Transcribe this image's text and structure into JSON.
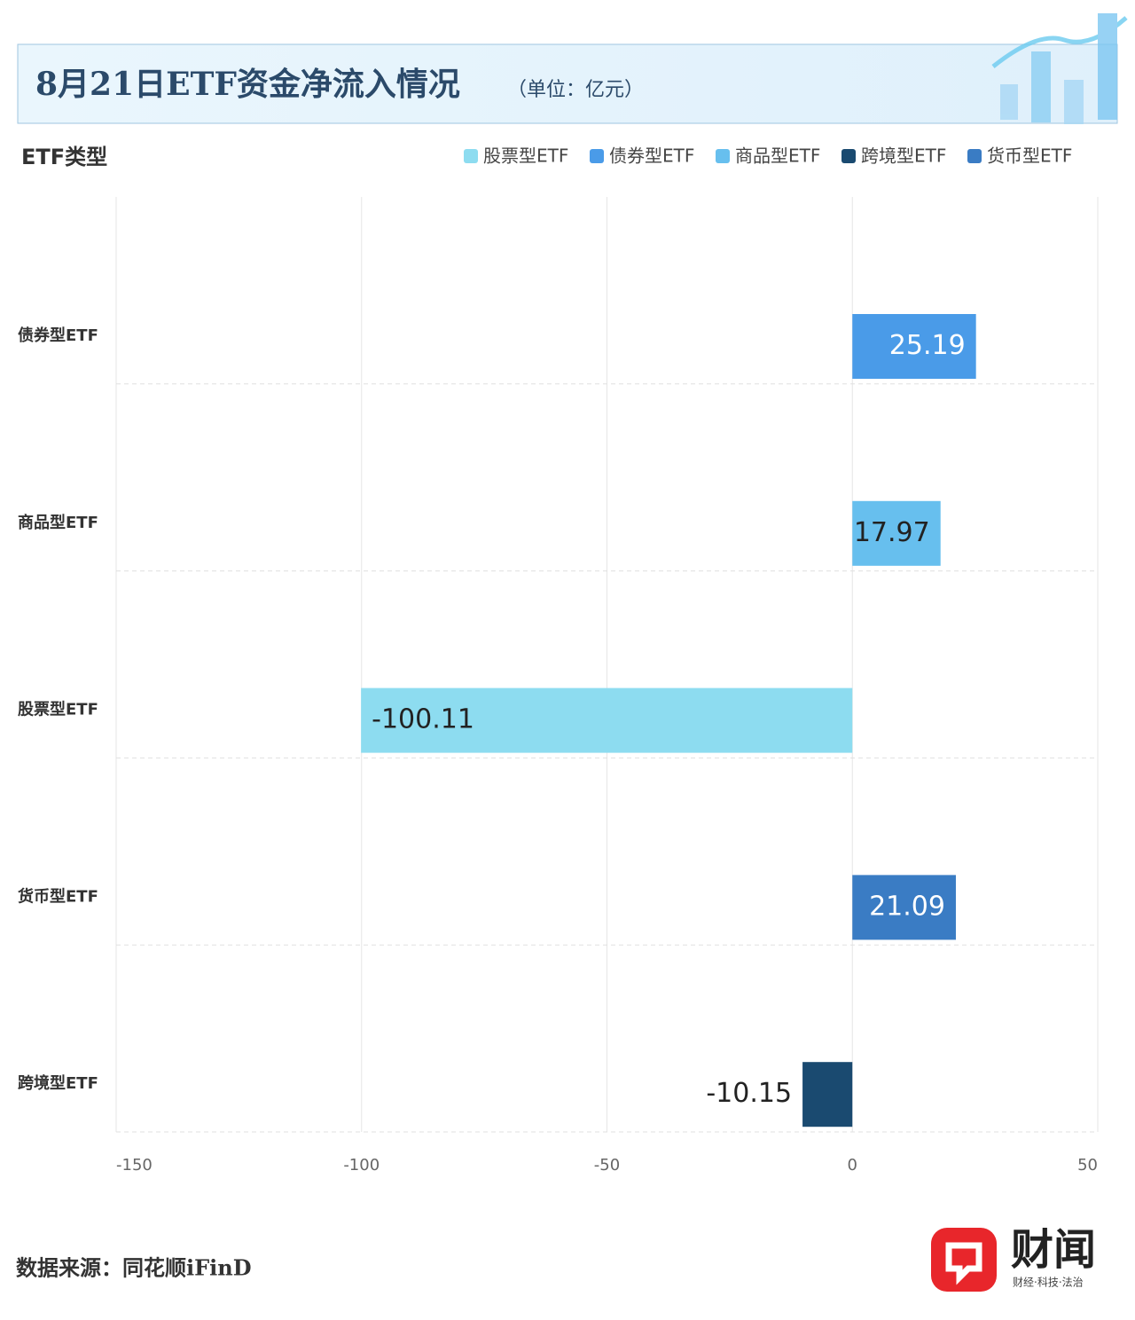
{
  "chart_data": {
    "type": "bar",
    "orientation": "horizontal",
    "title": "8月21日ETF资金净流入情况",
    "subtitle": "（单位：亿元）",
    "y_axis_title": "ETF类型",
    "categories": [
      "债券型ETF",
      "商品型ETF",
      "股票型ETF",
      "货币型ETF",
      "跨境型ETF"
    ],
    "series": [
      {
        "name": "股票型ETF",
        "color": "#8ddcf0",
        "values": [
          null,
          null,
          -100.11,
          null,
          null
        ]
      },
      {
        "name": "债券型ETF",
        "color": "#4a9be8",
        "values": [
          25.19,
          null,
          null,
          null,
          null
        ]
      },
      {
        "name": "商品型ETF",
        "color": "#67bfee",
        "values": [
          null,
          17.97,
          null,
          null,
          null
        ]
      },
      {
        "name": "跨境型ETF",
        "color": "#1a4a70",
        "values": [
          null,
          null,
          null,
          null,
          -10.15
        ]
      },
      {
        "name": "货币型ETF",
        "color": "#3a7cc4",
        "values": [
          null,
          null,
          null,
          21.09,
          null
        ]
      }
    ],
    "xlim": [
      -150,
      50
    ],
    "xticks": [
      -150,
      -100,
      -50,
      0,
      50
    ],
    "grid": true,
    "source": "数据来源：同花顺iFinD"
  },
  "logo": {
    "name": "财闻",
    "tagline": "财经·科技·法治"
  }
}
